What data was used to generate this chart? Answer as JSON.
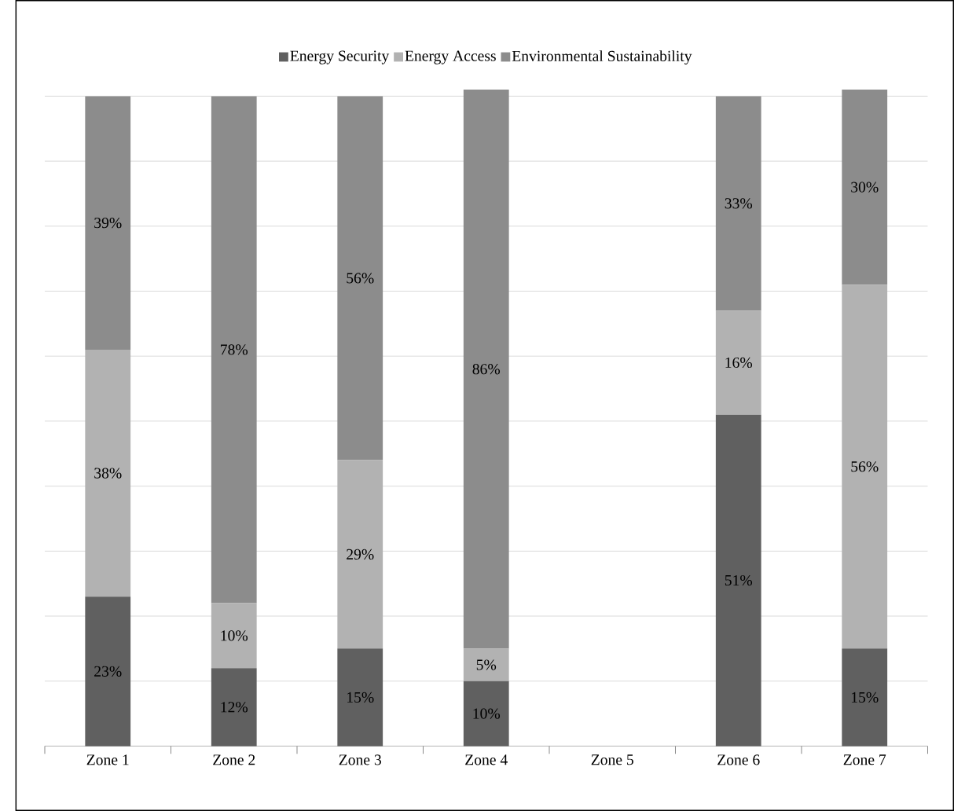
{
  "chart_data": {
    "type": "bar",
    "stacked": true,
    "categories": [
      "Zone 1",
      "Zone 2",
      "Zone 3",
      "Zone 4",
      "Zone 5",
      "Zone 6",
      "Zone 7"
    ],
    "series": [
      {
        "name": "Energy Security",
        "color": "#606060",
        "values": [
          23,
          12,
          15,
          10,
          null,
          51,
          15
        ],
        "value_labels": [
          "23%",
          "12%",
          "15%",
          "10%",
          null,
          "51%",
          "15%"
        ]
      },
      {
        "name": "Energy Access",
        "color": "#b2b2b2",
        "values": [
          38,
          10,
          29,
          5,
          null,
          16,
          56
        ],
        "value_labels": [
          "38%",
          "10%",
          "29%",
          "5%",
          null,
          "16%",
          "56%"
        ]
      },
      {
        "name": "Environmental Sustainability",
        "color": "#8c8c8c",
        "values": [
          39,
          78,
          56,
          86,
          null,
          33,
          30
        ],
        "value_labels": [
          "39%",
          "78%",
          "56%",
          "86%",
          null,
          "33%",
          "30%"
        ]
      }
    ],
    "ylim": [
      0,
      101
    ],
    "yticks": [
      {
        "value": 0,
        "label": null
      },
      {
        "value": 10,
        "label": null
      },
      {
        "value": 20,
        "label": null
      },
      {
        "value": 30,
        "label": null
      },
      {
        "value": 40,
        "label": null
      },
      {
        "value": 50,
        "label": null
      },
      {
        "value": 60,
        "label": null
      },
      {
        "value": 70,
        "label": null
      },
      {
        "value": 80,
        "label": null
      },
      {
        "value": 90,
        "label": null
      },
      {
        "value": 100,
        "label": null
      }
    ],
    "grid": "y",
    "legend": "top"
  }
}
